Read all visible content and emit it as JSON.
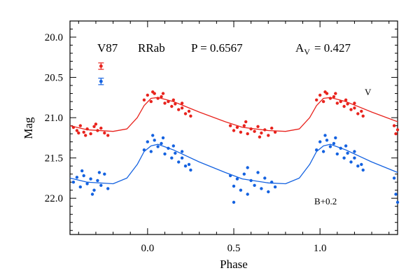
{
  "chart_data": {
    "type": "scatter",
    "title": "",
    "xlabel": "Phase",
    "ylabel": "Mag",
    "xlim": [
      -0.45,
      1.45
    ],
    "ylim": [
      22.45,
      19.8
    ],
    "y_inverted": true,
    "grid": false,
    "x_ticks": [
      0.0,
      0.5,
      1.0
    ],
    "x_tick_labels": [
      "0.0",
      "0.5",
      "1.0"
    ],
    "y_ticks": [
      20.0,
      20.5,
      21.0,
      21.5,
      22.0
    ],
    "y_tick_labels": [
      "20.0",
      "20.5",
      "21.0",
      "21.5",
      "22.0"
    ],
    "annotations": {
      "star": "V87",
      "type": "RRab",
      "period": "P = 0.6567",
      "amplitude_label": "A",
      "amplitude_sub": "V",
      "amplitude_value": "= 0.427"
    },
    "error_bars": [
      {
        "series": "V",
        "x": -0.27,
        "y": 20.36,
        "err": 0.04,
        "color": "#e8231d"
      },
      {
        "series": "B+0.2",
        "x": -0.27,
        "y": 20.55,
        "err": 0.04,
        "color": "#1462e0"
      }
    ],
    "series": [
      {
        "name": "V",
        "label": "V",
        "color": "#e8231d",
        "curve": [
          [
            -0.45,
            21.1
          ],
          [
            -0.35,
            21.15
          ],
          [
            -0.2,
            21.17
          ],
          [
            -0.12,
            21.14
          ],
          [
            -0.06,
            21.0
          ],
          [
            -0.02,
            20.85
          ],
          [
            0.02,
            20.76
          ],
          [
            0.06,
            20.75
          ],
          [
            0.15,
            20.8
          ],
          [
            0.3,
            20.93
          ],
          [
            0.45,
            21.05
          ],
          [
            0.55,
            21.12
          ],
          [
            0.7,
            21.16
          ],
          [
            0.8,
            21.17
          ],
          [
            0.88,
            21.14
          ],
          [
            0.94,
            21.0
          ],
          [
            0.98,
            20.85
          ],
          [
            1.02,
            20.76
          ],
          [
            1.06,
            20.75
          ],
          [
            1.15,
            20.8
          ],
          [
            1.3,
            20.93
          ],
          [
            1.45,
            21.05
          ]
        ],
        "points": [
          [
            -0.43,
            21.12
          ],
          [
            -0.41,
            21.16
          ],
          [
            -0.39,
            21.1
          ],
          [
            -0.37,
            21.18
          ],
          [
            -0.35,
            21.14
          ],
          [
            -0.33,
            21.2
          ],
          [
            -0.31,
            21.11
          ],
          [
            -0.29,
            21.16
          ],
          [
            -0.27,
            21.13
          ],
          [
            -0.25,
            21.19
          ],
          [
            -0.23,
            21.22
          ],
          [
            -0.3,
            21.08
          ],
          [
            -0.36,
            21.22
          ],
          [
            -0.4,
            21.19
          ],
          [
            -0.02,
            20.78
          ],
          [
            0.0,
            20.72
          ],
          [
            0.02,
            20.8
          ],
          [
            0.04,
            20.7
          ],
          [
            0.06,
            20.76
          ],
          [
            0.08,
            20.74
          ],
          [
            0.1,
            20.82
          ],
          [
            0.12,
            20.8
          ],
          [
            0.14,
            20.86
          ],
          [
            0.16,
            20.83
          ],
          [
            0.18,
            20.9
          ],
          [
            0.2,
            20.88
          ],
          [
            0.22,
            20.95
          ],
          [
            0.24,
            20.92
          ],
          [
            0.03,
            20.68
          ],
          [
            0.09,
            20.7
          ],
          [
            0.15,
            20.78
          ],
          [
            0.2,
            20.82
          ],
          [
            0.25,
            20.98
          ],
          [
            0.48,
            21.1
          ],
          [
            0.5,
            21.16
          ],
          [
            0.52,
            21.12
          ],
          [
            0.54,
            21.18
          ],
          [
            0.56,
            21.1
          ],
          [
            0.58,
            21.2
          ],
          [
            0.6,
            21.14
          ],
          [
            0.62,
            21.17
          ],
          [
            0.64,
            21.11
          ],
          [
            0.66,
            21.19
          ],
          [
            0.68,
            21.15
          ],
          [
            0.7,
            21.22
          ],
          [
            0.72,
            21.13
          ],
          [
            0.74,
            21.18
          ],
          [
            0.57,
            21.05
          ],
          [
            0.65,
            21.24
          ],
          [
            0.98,
            20.78
          ],
          [
            1.0,
            20.72
          ],
          [
            1.02,
            20.8
          ],
          [
            1.04,
            20.7
          ],
          [
            1.06,
            20.76
          ],
          [
            1.08,
            20.74
          ],
          [
            1.1,
            20.82
          ],
          [
            1.12,
            20.8
          ],
          [
            1.14,
            20.86
          ],
          [
            1.16,
            20.83
          ],
          [
            1.18,
            20.9
          ],
          [
            1.2,
            20.88
          ],
          [
            1.22,
            20.95
          ],
          [
            1.24,
            20.92
          ],
          [
            1.03,
            20.68
          ],
          [
            1.09,
            20.7
          ],
          [
            1.15,
            20.78
          ],
          [
            1.2,
            20.82
          ],
          [
            1.25,
            20.98
          ],
          [
            1.43,
            21.1
          ],
          [
            1.44,
            21.2
          ],
          [
            1.45,
            21.15
          ]
        ]
      },
      {
        "name": "B+0.2",
        "label": "B+0.2",
        "color": "#1462e0",
        "curve": [
          [
            -0.45,
            21.75
          ],
          [
            -0.35,
            21.8
          ],
          [
            -0.2,
            21.82
          ],
          [
            -0.12,
            21.75
          ],
          [
            -0.06,
            21.58
          ],
          [
            -0.02,
            21.42
          ],
          [
            0.02,
            21.35
          ],
          [
            0.06,
            21.33
          ],
          [
            0.15,
            21.4
          ],
          [
            0.3,
            21.55
          ],
          [
            0.45,
            21.68
          ],
          [
            0.55,
            21.76
          ],
          [
            0.7,
            21.81
          ],
          [
            0.8,
            21.82
          ],
          [
            0.88,
            21.75
          ],
          [
            0.94,
            21.58
          ],
          [
            0.98,
            21.42
          ],
          [
            1.02,
            21.35
          ],
          [
            1.06,
            21.33
          ],
          [
            1.15,
            21.4
          ],
          [
            1.3,
            21.55
          ],
          [
            1.45,
            21.68
          ]
        ],
        "points": [
          [
            -0.43,
            21.8
          ],
          [
            -0.41,
            21.74
          ],
          [
            -0.39,
            21.86
          ],
          [
            -0.37,
            21.72
          ],
          [
            -0.35,
            21.82
          ],
          [
            -0.33,
            21.76
          ],
          [
            -0.31,
            21.9
          ],
          [
            -0.29,
            21.78
          ],
          [
            -0.27,
            21.84
          ],
          [
            -0.25,
            21.7
          ],
          [
            -0.23,
            21.88
          ],
          [
            -0.38,
            21.66
          ],
          [
            -0.32,
            21.95
          ],
          [
            -0.28,
            21.68
          ],
          [
            -0.02,
            21.4
          ],
          [
            0.0,
            21.3
          ],
          [
            0.02,
            21.42
          ],
          [
            0.04,
            21.28
          ],
          [
            0.06,
            21.36
          ],
          [
            0.08,
            21.32
          ],
          [
            0.1,
            21.45
          ],
          [
            0.12,
            21.38
          ],
          [
            0.14,
            21.5
          ],
          [
            0.16,
            21.44
          ],
          [
            0.18,
            21.55
          ],
          [
            0.2,
            21.5
          ],
          [
            0.22,
            21.6
          ],
          [
            0.24,
            21.58
          ],
          [
            0.03,
            21.22
          ],
          [
            0.09,
            21.25
          ],
          [
            0.15,
            21.35
          ],
          [
            0.2,
            21.42
          ],
          [
            0.25,
            21.65
          ],
          [
            0.48,
            21.72
          ],
          [
            0.5,
            21.85
          ],
          [
            0.52,
            21.76
          ],
          [
            0.54,
            21.9
          ],
          [
            0.56,
            21.7
          ],
          [
            0.58,
            21.95
          ],
          [
            0.6,
            21.78
          ],
          [
            0.62,
            21.84
          ],
          [
            0.64,
            21.68
          ],
          [
            0.66,
            21.88
          ],
          [
            0.68,
            21.75
          ],
          [
            0.7,
            21.92
          ],
          [
            0.72,
            21.8
          ],
          [
            0.74,
            21.86
          ],
          [
            0.5,
            22.05
          ],
          [
            0.58,
            21.62
          ],
          [
            0.98,
            21.4
          ],
          [
            1.0,
            21.3
          ],
          [
            1.02,
            21.42
          ],
          [
            1.04,
            21.28
          ],
          [
            1.06,
            21.36
          ],
          [
            1.08,
            21.32
          ],
          [
            1.1,
            21.45
          ],
          [
            1.12,
            21.38
          ],
          [
            1.14,
            21.5
          ],
          [
            1.16,
            21.44
          ],
          [
            1.18,
            21.55
          ],
          [
            1.2,
            21.5
          ],
          [
            1.22,
            21.6
          ],
          [
            1.24,
            21.58
          ],
          [
            1.03,
            21.22
          ],
          [
            1.09,
            21.25
          ],
          [
            1.15,
            21.35
          ],
          [
            1.2,
            21.42
          ],
          [
            1.25,
            21.65
          ],
          [
            1.43,
            21.75
          ],
          [
            1.44,
            21.95
          ],
          [
            1.45,
            22.05
          ]
        ]
      }
    ]
  }
}
